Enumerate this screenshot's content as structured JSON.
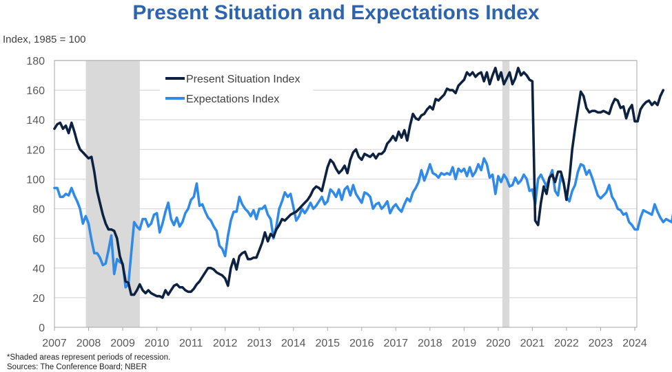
{
  "chart_data": {
    "type": "line",
    "title": "Present Situation and Expectations Index",
    "ylabel": "Index, 1985 = 100",
    "xlabel": "",
    "xlim": [
      2007,
      2024
    ],
    "ylim": [
      0,
      180
    ],
    "x_ticks": [
      "2007",
      "2008",
      "2009",
      "2010",
      "2011",
      "2012",
      "2013",
      "2014",
      "2015",
      "2016",
      "2017",
      "2018",
      "2019",
      "2020",
      "2021",
      "2022",
      "2023",
      "2024"
    ],
    "y_ticks": [
      "0",
      "20",
      "40",
      "60",
      "80",
      "100",
      "120",
      "140",
      "160",
      "180"
    ],
    "grid": "horizontal",
    "legend": {
      "placement": "top-left",
      "entries": [
        "Present Situation Index",
        "Expectations Index"
      ]
    },
    "recessions": [
      {
        "start": 2007.92,
        "end": 2009.5
      },
      {
        "start": 2020.12,
        "end": 2020.33
      }
    ],
    "x_start": 2007.0,
    "x_step_months": 1,
    "series": [
      {
        "name": "Present Situation Index",
        "color": "#0d2240",
        "values": [
          134,
          137,
          138,
          134,
          136,
          131,
          138,
          132,
          125,
          120,
          118,
          116,
          114,
          115,
          105,
          92,
          84,
          76,
          70,
          66,
          66,
          65,
          60,
          48,
          42,
          31,
          30,
          22,
          22,
          25,
          29,
          25,
          23,
          25,
          23,
          22,
          21,
          21,
          20,
          25,
          22,
          25,
          28,
          29,
          27,
          27,
          25,
          24,
          24,
          26,
          29,
          31,
          34,
          37,
          40,
          40,
          39,
          37,
          36,
          35,
          33,
          28,
          40,
          46,
          39,
          48,
          50,
          51,
          46,
          46,
          47,
          47,
          52,
          57,
          64,
          58,
          63,
          61,
          66,
          69,
          73,
          72,
          74,
          76,
          77,
          78,
          80,
          82,
          84,
          86,
          89,
          93,
          95,
          94,
          92,
          100,
          108,
          113,
          111,
          107,
          104,
          106,
          109,
          104,
          113,
          118,
          120,
          115,
          113,
          117,
          116,
          115,
          117,
          114,
          117,
          117,
          119,
          124,
          126,
          129,
          126,
          132,
          128,
          133,
          126,
          136,
          144,
          141,
          140,
          143,
          144,
          147,
          149,
          147,
          154,
          153,
          155,
          157,
          161,
          160,
          160,
          158,
          163,
          165,
          167,
          172,
          170,
          172,
          169,
          171,
          172,
          166,
          172,
          164,
          170,
          175,
          167,
          172,
          164,
          168,
          172,
          164,
          168,
          175,
          170,
          172,
          170,
          167,
          166,
          72,
          69,
          84,
          95,
          90,
          101,
          103,
          98,
          105,
          105,
          98,
          86,
          100,
          120,
          134,
          147,
          159,
          156,
          148,
          145,
          146,
          146,
          145,
          145,
          146,
          145,
          144,
          150,
          154,
          153,
          148,
          149,
          141,
          147,
          150,
          139,
          139,
          147,
          150,
          152,
          153,
          150,
          152,
          150,
          156,
          160
        ]
      },
      {
        "name": "Expectations Index",
        "color": "#2f8ae8",
        "values": [
          94,
          94,
          88,
          88,
          90,
          89,
          94,
          89,
          85,
          80,
          70,
          75,
          70,
          59,
          50,
          50,
          47,
          42,
          43,
          52,
          62,
          36,
          46,
          44,
          43,
          27,
          29,
          50,
          71,
          68,
          66,
          73,
          73,
          68,
          70,
          76,
          77,
          64,
          70,
          78,
          84,
          73,
          69,
          74,
          68,
          71,
          77,
          80,
          86,
          88,
          97,
          82,
          83,
          78,
          74,
          72,
          68,
          65,
          55,
          53,
          48,
          62,
          72,
          78,
          78,
          88,
          83,
          80,
          78,
          75,
          79,
          73,
          80,
          80,
          82,
          76,
          73,
          60,
          68,
          80,
          85,
          91,
          88,
          90,
          81,
          72,
          75,
          80,
          77,
          80,
          84,
          80,
          82,
          85,
          88,
          83,
          85,
          93,
          91,
          88,
          93,
          86,
          93,
          95,
          89,
          96,
          90,
          87,
          84,
          91,
          90,
          88,
          80,
          83,
          84,
          80,
          82,
          85,
          77,
          81,
          83,
          80,
          78,
          83,
          87,
          85,
          91,
          94,
          98,
          106,
          99,
          104,
          110,
          104,
          103,
          101,
          104,
          103,
          104,
          103,
          108,
          100,
          107,
          105,
          107,
          102,
          108,
          102,
          105,
          110,
          106,
          114,
          110,
          101,
          103,
          90,
          102,
          98,
          103,
          100,
          95,
          96,
          101,
          97,
          99,
          103,
          100,
          92,
          93,
          83,
          100,
          103,
          99,
          95,
          101,
          106,
          92,
          89,
          102,
          97,
          88,
          85,
          92,
          96,
          105,
          110,
          109,
          103,
          106,
          101,
          95,
          89,
          87,
          89,
          91,
          96,
          88,
          85,
          80,
          79,
          76,
          77,
          71,
          69,
          66,
          66,
          74,
          79,
          78,
          77,
          76,
          83,
          78,
          74,
          71,
          73,
          72,
          71,
          83,
          89
        ]
      }
    ]
  },
  "header": {
    "title": "Present Situation and Expectations Index",
    "y_axis_label": "Index, 1985 = 100"
  },
  "footer": {
    "note": "*Shaded areas represent periods of recession.",
    "sources": "Sources: The Conference Board; NBER"
  }
}
